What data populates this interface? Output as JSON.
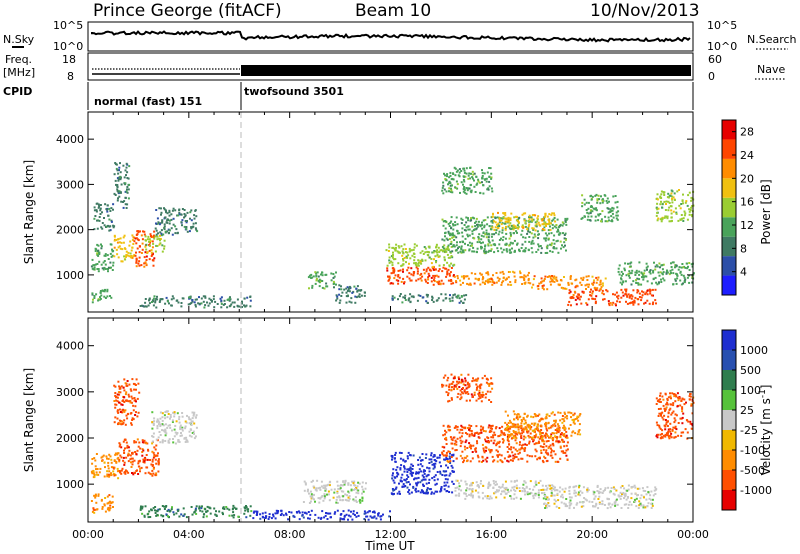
{
  "header": {
    "station_title": "Prince George (fitACF)",
    "beam": "Beam 10",
    "date": "10/Nov/2013"
  },
  "top_panels": {
    "nsky": {
      "label": "N.Sky",
      "left_ticks": [
        "10^5",
        "10^0"
      ],
      "right_label": "N.Search",
      "right_ticks": [
        "10^5",
        "10^0"
      ]
    },
    "freq": {
      "label_line1": "Freq.",
      "label_line2": "[MHz]",
      "left_ticks": [
        "18",
        "8"
      ],
      "right_label": "Nave",
      "right_ticks": [
        "60",
        "0"
      ]
    },
    "cpid": {
      "label": "CPID",
      "segments": [
        {
          "name": "normal (fast) 151",
          "start_hour": 0,
          "end_hour": 6
        },
        {
          "name": "twofsound 3501",
          "start_hour": 6,
          "end_hour": 24
        }
      ]
    }
  },
  "colors": {
    "power_scale": [
      "#1e1eff",
      "#2c4fa8",
      "#3f7a63",
      "#49a35a",
      "#9acd32",
      "#f0c010",
      "#ff8c00",
      "#ff4500",
      "#e60000"
    ],
    "velocity_scale": [
      "#1e2ed0",
      "#2850b0",
      "#2f7d4e",
      "#56c23a",
      "#c8c8c8",
      "#f0b800",
      "#ff8c00",
      "#ff4f00",
      "#e60000"
    ]
  },
  "chart_data": [
    {
      "type": "heatmap",
      "name": "Power",
      "xlabel": "Time UT",
      "ylabel": "Slant Range [km]",
      "x_ticks": [
        "00:00",
        "04:00",
        "08:00",
        "12:00",
        "16:00",
        "20:00",
        "00:00"
      ],
      "x_range_hours": [
        0,
        24
      ],
      "y_ticks": [
        1000,
        2000,
        3000,
        4000
      ],
      "y_range_km": [
        180,
        4600
      ],
      "colorbar": {
        "label": "Power [dB]",
        "ticks": [
          4,
          8,
          12,
          16,
          20,
          24,
          28
        ],
        "range": [
          0,
          30
        ]
      },
      "regions": [
        {
          "t_start": 0.1,
          "t_end": 1.0,
          "r_start": 1100,
          "r_end": 1700,
          "level": 12
        },
        {
          "t_start": 1.0,
          "t_end": 1.8,
          "r_start": 1300,
          "r_end": 1900,
          "level": 20
        },
        {
          "t_start": 1.8,
          "t_end": 2.6,
          "r_start": 1200,
          "r_end": 2000,
          "level": 28
        },
        {
          "t_start": 2.2,
          "t_end": 3.0,
          "r_start": 1500,
          "r_end": 1900,
          "level": 16
        },
        {
          "t_start": 0.1,
          "t_end": 0.9,
          "r_start": 400,
          "r_end": 700,
          "level": 12
        },
        {
          "t_start": 0.2,
          "t_end": 1.0,
          "r_start": 2000,
          "r_end": 2600,
          "level": 8
        },
        {
          "t_start": 1.0,
          "t_end": 1.6,
          "r_start": 2500,
          "r_end": 3500,
          "level": 8
        },
        {
          "t_start": 2.6,
          "t_end": 4.3,
          "r_start": 1900,
          "r_end": 2500,
          "level": 8
        },
        {
          "t_start": 2.0,
          "t_end": 6.5,
          "r_start": 300,
          "r_end": 550,
          "level": 8
        },
        {
          "t_start": 8.7,
          "t_end": 9.8,
          "r_start": 700,
          "r_end": 1100,
          "level": 12
        },
        {
          "t_start": 9.8,
          "t_end": 11.0,
          "r_start": 400,
          "r_end": 800,
          "level": 8
        },
        {
          "t_start": 11.8,
          "t_end": 14.5,
          "r_start": 800,
          "r_end": 1200,
          "level": 28
        },
        {
          "t_start": 11.8,
          "t_end": 14.5,
          "r_start": 1200,
          "r_end": 1700,
          "level": 16
        },
        {
          "t_start": 14.5,
          "t_end": 17.5,
          "r_start": 800,
          "r_end": 1100,
          "level": 24
        },
        {
          "t_start": 17.5,
          "t_end": 20.5,
          "r_start": 700,
          "r_end": 1000,
          "level": 24
        },
        {
          "t_start": 19.0,
          "t_end": 22.5,
          "r_start": 350,
          "r_end": 700,
          "level": 28
        },
        {
          "t_start": 14.0,
          "t_end": 19.0,
          "r_start": 1500,
          "r_end": 2300,
          "level": 12
        },
        {
          "t_start": 16.0,
          "t_end": 18.5,
          "r_start": 2000,
          "r_end": 2400,
          "level": 20
        },
        {
          "t_start": 14.0,
          "t_end": 16.0,
          "r_start": 2800,
          "r_end": 3400,
          "level": 12
        },
        {
          "t_start": 19.5,
          "t_end": 21.0,
          "r_start": 2200,
          "r_end": 2800,
          "level": 12
        },
        {
          "t_start": 21.0,
          "t_end": 24.0,
          "r_start": 800,
          "r_end": 1300,
          "level": 12
        },
        {
          "t_start": 22.5,
          "t_end": 24.0,
          "r_start": 2200,
          "r_end": 2900,
          "level": 16
        },
        {
          "t_start": 12.0,
          "t_end": 15.0,
          "r_start": 400,
          "r_end": 600,
          "level": 8
        }
      ]
    },
    {
      "type": "heatmap",
      "name": "Velocity",
      "xlabel": "Time UT",
      "ylabel": "Slant Range [km]",
      "x_ticks": [
        "00:00",
        "04:00",
        "08:00",
        "12:00",
        "16:00",
        "20:00",
        "00:00"
      ],
      "x_range_hours": [
        0,
        24
      ],
      "y_ticks": [
        1000,
        2000,
        3000,
        4000
      ],
      "y_range_km": [
        180,
        4600
      ],
      "colorbar": {
        "label": "Velocity [m s^-1]",
        "ticks": [
          "1000",
          "500",
          "100",
          "25",
          "-25",
          "-100",
          "-500",
          "-1000"
        ]
      },
      "regions": [
        {
          "t_start": 0.1,
          "t_end": 1.2,
          "r_start": 1100,
          "r_end": 1700,
          "level": 1
        },
        {
          "t_start": 1.2,
          "t_end": 2.8,
          "r_start": 1200,
          "r_end": 2000,
          "level": 2
        },
        {
          "t_start": 0.1,
          "t_end": 1.0,
          "r_start": 400,
          "r_end": 800,
          "level": 1
        },
        {
          "t_start": 1.0,
          "t_end": 2.0,
          "r_start": 2300,
          "r_end": 3300,
          "level": 2
        },
        {
          "t_start": 2.5,
          "t_end": 4.3,
          "r_start": 1900,
          "r_end": 2600,
          "level": 0
        },
        {
          "t_start": 2.0,
          "t_end": 6.5,
          "r_start": 300,
          "r_end": 550,
          "level": -1
        },
        {
          "t_start": 8.5,
          "t_end": 11.0,
          "r_start": 600,
          "r_end": 1100,
          "level": 0
        },
        {
          "t_start": 12.0,
          "t_end": 14.5,
          "r_start": 800,
          "r_end": 1700,
          "level": -2
        },
        {
          "t_start": 14.5,
          "t_end": 18.0,
          "r_start": 700,
          "r_end": 1100,
          "level": 0
        },
        {
          "t_start": 18.0,
          "t_end": 22.5,
          "r_start": 500,
          "r_end": 1000,
          "level": 0
        },
        {
          "t_start": 14.0,
          "t_end": 19.0,
          "r_start": 1500,
          "r_end": 2300,
          "level": 2
        },
        {
          "t_start": 14.0,
          "t_end": 16.0,
          "r_start": 2800,
          "r_end": 3400,
          "level": 2
        },
        {
          "t_start": 16.5,
          "t_end": 19.5,
          "r_start": 2000,
          "r_end": 2600,
          "level": 1
        },
        {
          "t_start": 22.5,
          "t_end": 24.0,
          "r_start": 2000,
          "r_end": 3000,
          "level": 2
        },
        {
          "t_start": 6.5,
          "t_end": 12.0,
          "r_start": 250,
          "r_end": 450,
          "level": -2
        }
      ]
    }
  ]
}
